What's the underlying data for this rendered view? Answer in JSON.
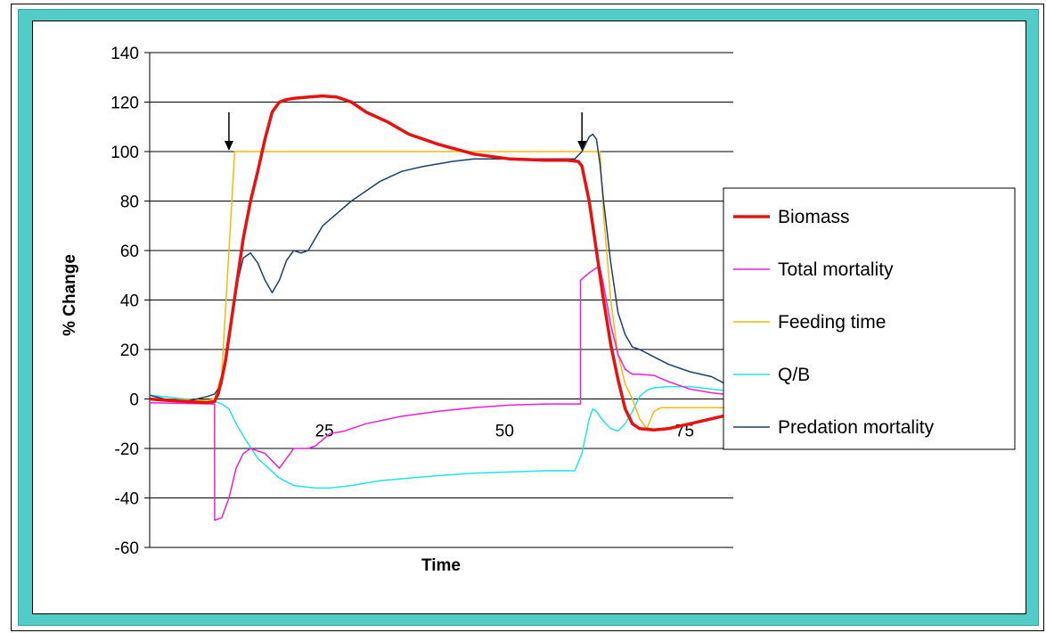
{
  "chart_data": {
    "type": "line",
    "xlabel": "Time",
    "ylabel": "% Change",
    "xlim": [
      0,
      81
    ],
    "ylim": [
      -60,
      140
    ],
    "yticks": [
      140,
      120,
      100,
      80,
      60,
      40,
      20,
      0,
      -20,
      -40,
      -60
    ],
    "xticks": [
      25,
      50,
      75
    ],
    "grid": "horizontal",
    "legend_position": "right",
    "arrows": [
      {
        "x": 11
      },
      {
        "x": 60
      }
    ],
    "series": [
      {
        "name": "Biomass",
        "color": "#e8110f",
        "width": 3.5,
        "x": [
          0,
          2,
          5,
          8,
          9,
          9.5,
          10,
          10.5,
          11,
          12,
          13,
          14,
          15,
          16,
          17,
          18,
          19,
          20,
          22,
          24,
          26,
          28,
          30,
          33,
          36,
          40,
          45,
          50,
          55,
          58,
          59.5,
          60,
          61,
          62,
          63,
          64,
          65,
          66,
          67,
          68,
          70,
          72,
          75,
          78,
          81
        ],
        "y": [
          0,
          -0.5,
          -1,
          -1.5,
          -1,
          2,
          8,
          15,
          25,
          45,
          65,
          80,
          92,
          105,
          116,
          120,
          121,
          121.5,
          122,
          122.5,
          122,
          120,
          116,
          112,
          107,
          103,
          99,
          97,
          96.5,
          96.5,
          96,
          94,
          80,
          60,
          40,
          22,
          8,
          -4,
          -10,
          -12,
          -12.5,
          -12,
          -10,
          -8,
          -6
        ]
      },
      {
        "name": "Total mortality",
        "color": "#ee1dd6",
        "width": 1.5,
        "x": [
          0,
          9,
          9.01,
          10,
          11,
          12,
          13,
          14,
          16,
          18,
          20,
          22,
          23,
          25,
          27,
          30,
          35,
          40,
          45,
          50,
          55,
          59.8,
          59.81,
          61,
          62,
          62.5,
          63,
          64,
          65,
          66,
          67,
          68,
          70,
          72,
          75,
          78,
          81
        ],
        "y": [
          -1.5,
          -2,
          -49,
          -48,
          -40,
          -28,
          -22,
          -20,
          -22,
          -28,
          -20,
          -20,
          -19,
          -14,
          -13,
          -10,
          -7,
          -5,
          -3.5,
          -2.5,
          -2,
          -2,
          48,
          51,
          53,
          53,
          46,
          30,
          18,
          12,
          10,
          10,
          9.5,
          7,
          4,
          2.5,
          1.5
        ]
      },
      {
        "name": "Feeding time",
        "color": "#f7b90a",
        "width": 1.5,
        "x": [
          0,
          8,
          9,
          10,
          11,
          11.8,
          60,
          61,
          62,
          62.5,
          63,
          64,
          65,
          66,
          67,
          68,
          69,
          70,
          71,
          72,
          75,
          81
        ],
        "y": [
          0,
          -0.5,
          0,
          10,
          60,
          100,
          100,
          100,
          100,
          100,
          75,
          40,
          18,
          6,
          0,
          -8,
          -12,
          -5,
          -3.5,
          -3.5,
          -3.5,
          -3.5
        ]
      },
      {
        "name": "Q/B",
        "color": "#1ee6e6",
        "width": 1.5,
        "x": [
          0,
          5,
          9,
          10,
          11,
          12,
          13,
          15,
          18,
          20,
          23,
          25,
          28,
          32,
          36,
          40,
          45,
          50,
          55,
          59,
          60,
          61,
          61.5,
          62,
          63,
          64,
          65,
          66,
          67,
          68,
          69,
          70,
          72,
          75,
          78,
          81
        ],
        "y": [
          1.5,
          0,
          -1,
          -2,
          -4,
          -10,
          -15,
          -24,
          -32,
          -35,
          -36,
          -36,
          -35,
          -33,
          -32,
          -31,
          -30,
          -29.5,
          -29,
          -29,
          -22,
          -8,
          -4,
          -5,
          -9,
          -12,
          -13,
          -10,
          -5,
          1,
          3.5,
          4.5,
          5,
          5,
          4,
          3
        ]
      },
      {
        "name": "Predation mortality",
        "color": "#1a3f6e",
        "width": 1.5,
        "x": [
          0,
          2,
          5,
          8,
          9,
          10,
          11,
          12,
          13,
          14,
          15,
          16,
          17,
          18,
          19,
          20,
          21,
          22,
          24,
          26,
          28,
          30,
          32,
          35,
          38,
          42,
          45,
          50,
          55,
          59,
          60,
          60.5,
          61,
          61.5,
          62,
          62.5,
          63,
          64,
          65,
          66,
          67,
          68,
          70,
          72,
          75,
          78,
          80,
          81
        ],
        "y": [
          1.5,
          0,
          -1,
          1,
          2,
          6,
          25,
          45,
          57,
          59,
          55,
          48,
          43,
          48,
          56,
          60,
          59,
          60,
          70,
          75,
          80,
          84,
          88,
          92,
          94,
          96,
          97,
          97,
          97,
          97,
          100,
          103,
          106,
          107,
          105,
          95,
          80,
          55,
          35,
          26,
          21,
          20,
          17,
          14,
          11,
          9,
          6,
          5
        ]
      }
    ]
  }
}
